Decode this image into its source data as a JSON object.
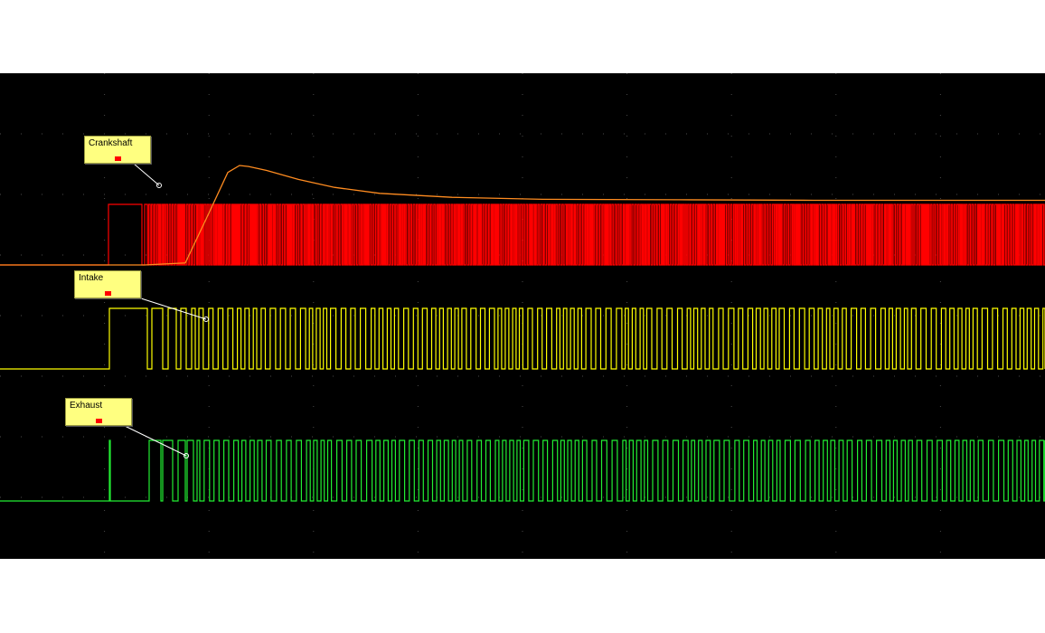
{
  "chart_data": {
    "type": "line",
    "title": "",
    "xlabel": "",
    "ylabel": "",
    "grid": true,
    "colors": {
      "background": "#000000",
      "grid": "#4a4a4a",
      "crankshaft": "#ff0000",
      "intake": "#ffff00",
      "exhaust": "#22ee33",
      "pressure": "#ff8c20",
      "callout": "#ffff80"
    },
    "series": [
      {
        "name": "Crankshaft",
        "kind": "digital",
        "color": "#ff0000",
        "start_ms": 120,
        "first_edges_ms": [
          120,
          157,
          160,
          163
        ],
        "steady_period_ms": 1.2
      },
      {
        "name": "Intake",
        "kind": "digital",
        "color": "#ffff00",
        "start_ms": 121,
        "first_edges_ms": [
          121,
          163,
          168,
          180,
          186,
          195,
          200,
          206,
          212,
          216,
          220
        ],
        "steady_period_ms": 4.2
      },
      {
        "name": "Exhaust",
        "kind": "digital",
        "color": "#22ee33",
        "start_ms": 121,
        "first_edges_ms": [
          121,
          122,
          165,
          178,
          180,
          191,
          197,
          205,
          207,
          214,
          218,
          221
        ],
        "steady_period_ms": 4.2
      },
      {
        "kind": "analog",
        "color": "#ff8c20",
        "x": [
          0,
          160,
          205,
          230,
          252,
          265,
          275,
          295,
          330,
          370,
          420,
          500,
          600,
          750,
          900,
          1156
        ],
        "y": [
          0.0,
          0.0,
          0.02,
          0.5,
          0.93,
          1.0,
          0.99,
          0.95,
          0.86,
          0.78,
          0.72,
          0.68,
          0.66,
          0.655,
          0.65,
          0.65
        ]
      }
    ]
  },
  "callouts": [
    {
      "label": "Crankshaft"
    },
    {
      "label": "Intake"
    },
    {
      "label": "Exhaust"
    }
  ]
}
